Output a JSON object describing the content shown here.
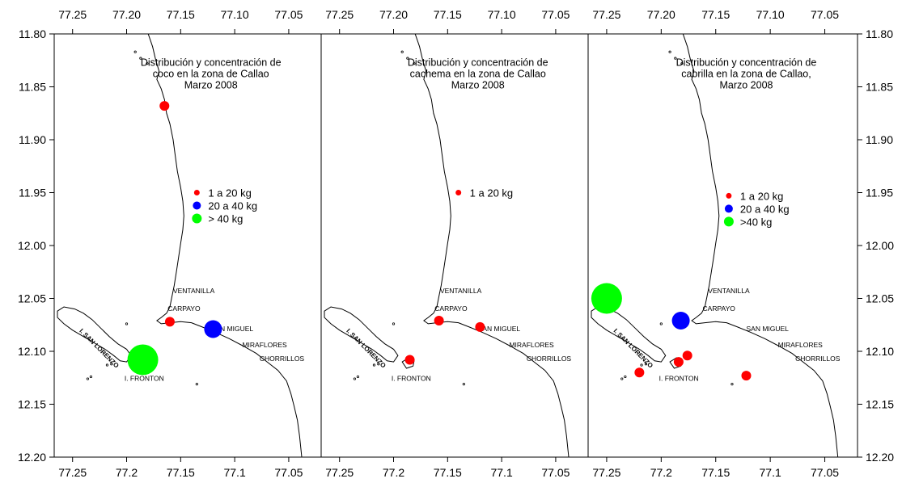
{
  "panels": [
    {
      "title_lines": [
        "Distribución y concentración de",
        "coco  en la zona de Callao",
        "Marzo 2008"
      ],
      "x_ticks_top": [
        "77.25",
        "77.20",
        "77.15",
        "77.10",
        "77.05"
      ],
      "x_ticks_bottom": [
        "77.25",
        "77.2",
        "77.15",
        "77.1",
        "77.05"
      ],
      "legend": [
        {
          "label": "1  a  20  kg",
          "color": "#ff0000"
        },
        {
          "label": "20  a  40  kg",
          "color": "#0000ff"
        },
        {
          "label": "> 40       kg",
          "color": "#00ff00"
        }
      ],
      "places": {
        "ventanilla": "VENTANILLA",
        "carpayo": "CARPAYO",
        "san_miguel": "SAN  MIGUEL",
        "miraflores": "MIRAFLORES",
        "chorrillos": "CHORRILLOS",
        "fronton": "I. FRONTON",
        "san_lorenzo": "I. SAN LORENZO"
      },
      "points": [
        {
          "lon": 77.165,
          "lat": 11.868,
          "class": "1 a 20 kg",
          "color": "#ff0000"
        },
        {
          "lon": 77.16,
          "lat": 12.072,
          "class": "1 a 20 kg",
          "color": "#ff0000"
        },
        {
          "lon": 77.12,
          "lat": 12.079,
          "class": "20 a 40 kg",
          "color": "#0000ff"
        },
        {
          "lon": 77.185,
          "lat": 12.108,
          "class": "> 40 kg",
          "color": "#00ff00"
        }
      ]
    },
    {
      "title_lines": [
        "Distribución y concentración de",
        "cachema  en la zona de  Callao",
        "Marzo 2008"
      ],
      "x_ticks_top": [
        "77.25",
        "77.20",
        "77.15",
        "77.10",
        "77.05"
      ],
      "x_ticks_bottom": [
        "77.25",
        "77.2",
        "77.15",
        "77.1",
        "77.05"
      ],
      "legend": [
        {
          "label": "1  a  20  kg",
          "color": "#ff0000"
        }
      ],
      "places": {
        "ventanilla": "VENTANILLA",
        "carpayo": "CARPAYO",
        "san_miguel": "SAN  MIGUEL",
        "miraflores": "MIRAFLORES",
        "chorrillos": "CHORRILLOS",
        "fronton": "I. FRONTON",
        "san_lorenzo": "I. SAN LORENZO"
      },
      "points": [
        {
          "lon": 77.158,
          "lat": 12.071,
          "class": "1 a 20 kg",
          "color": "#ff0000"
        },
        {
          "lon": 77.12,
          "lat": 12.077,
          "class": "1 a 20 kg",
          "color": "#ff0000"
        },
        {
          "lon": 77.185,
          "lat": 12.108,
          "class": "1 a 20 kg",
          "color": "#ff0000"
        }
      ]
    },
    {
      "title_lines": [
        "Distribución y concentración de",
        "cabrilla  en la zona de Callao,",
        "Marzo 2008"
      ],
      "x_ticks_top": [
        "77.25",
        "77.20",
        "77.15",
        "77.10",
        "77.05"
      ],
      "x_ticks_bottom": [
        "77.25",
        "77.2",
        "77.15",
        "77.1",
        "77.05"
      ],
      "legend": [
        {
          "label": "1  a  20  kg",
          "color": "#ff0000"
        },
        {
          "label": "20  a  40  kg",
          "color": "#0000ff"
        },
        {
          "label": ">40       kg",
          "color": "#00ff00"
        }
      ],
      "places": {
        "ventanilla": "VENTANILLA",
        "carpayo": "CARPAYO",
        "san_miguel": "SAN  MIGUEL",
        "miraflores": "MIRAFLORES",
        "chorrillos": "CHORRILLOS",
        "fronton": "I. FRONTON",
        "san_lorenzo": "I. SAN LORENZO"
      },
      "points": [
        {
          "lon": 77.25,
          "lat": 12.05,
          "class": "> 40 kg",
          "color": "#00ff00"
        },
        {
          "lon": 77.182,
          "lat": 12.071,
          "class": "20 a 40 kg",
          "color": "#0000ff"
        },
        {
          "lon": 77.176,
          "lat": 12.104,
          "class": "1 a 20 kg",
          "color": "#ff0000"
        },
        {
          "lon": 77.184,
          "lat": 12.11,
          "class": "1 a 20 kg",
          "color": "#ff0000"
        },
        {
          "lon": 77.22,
          "lat": 12.12,
          "class": "1 a 20 kg",
          "color": "#ff0000"
        },
        {
          "lon": 77.122,
          "lat": 12.123,
          "class": "1 a 20 kg",
          "color": "#ff0000"
        }
      ]
    }
  ],
  "y_ticks": [
    "11.80",
    "11.85",
    "11.90",
    "11.95",
    "12.00",
    "12.05",
    "12.10",
    "12.15",
    "12.20"
  ]
}
